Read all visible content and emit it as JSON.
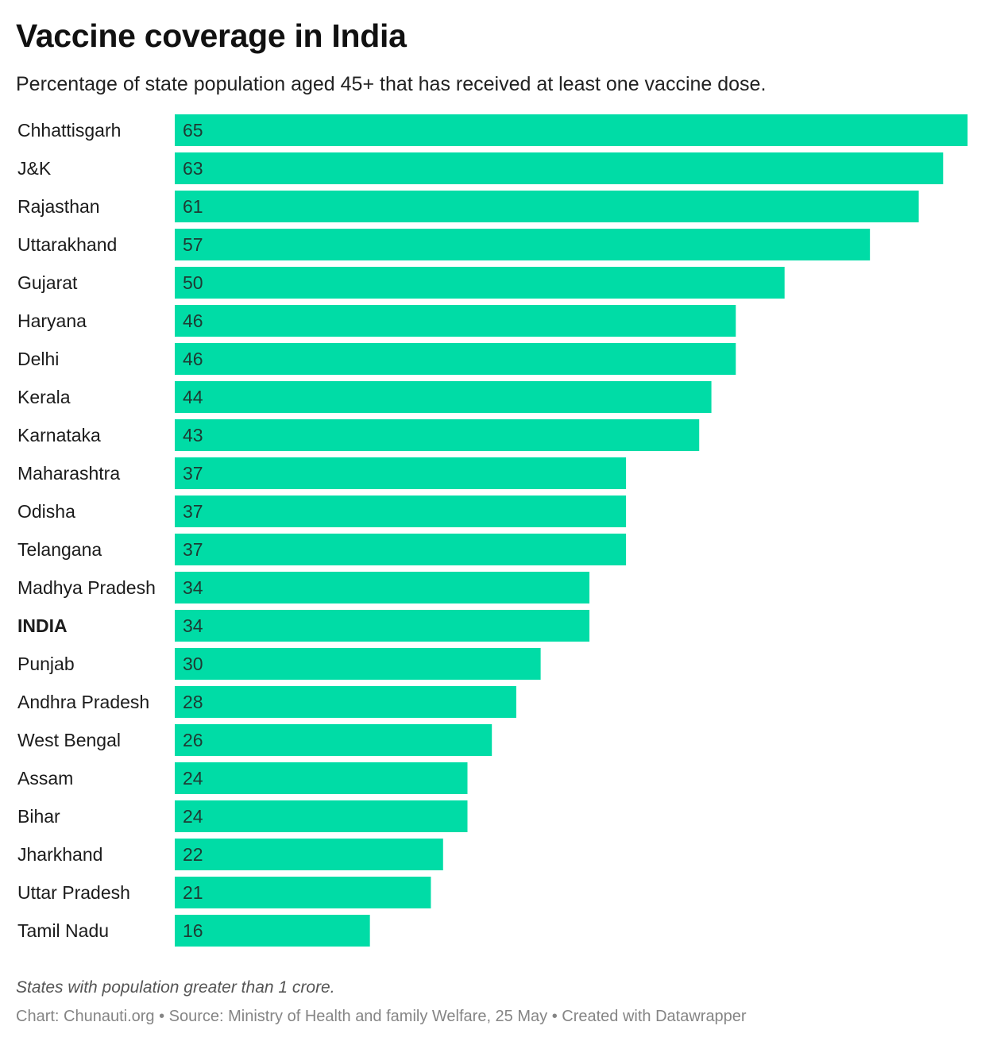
{
  "header": {
    "title": "Vaccine coverage in India",
    "subtitle": "Percentage of state population aged 45+ that has received at least one vaccine dose."
  },
  "chart_data": {
    "type": "bar",
    "orientation": "horizontal",
    "title": "Vaccine coverage in India",
    "subtitle": "Percentage of state population aged 45+ that has received at least one vaccine dose.",
    "xlabel": "",
    "ylabel": "",
    "xlim": [
      0,
      65
    ],
    "grid": false,
    "bar_color": "#00dca6",
    "categories": [
      "Chhattisgarh",
      "J&K",
      "Rajasthan",
      "Uttarakhand",
      "Gujarat",
      "Haryana",
      "Delhi",
      "Kerala",
      "Karnataka",
      "Maharashtra",
      "Odisha",
      "Telangana",
      "Madhya Pradesh",
      "INDIA",
      "Punjab",
      "Andhra Pradesh",
      "West Bengal",
      "Assam",
      "Bihar",
      "Jharkhand",
      "Uttar Pradesh",
      "Tamil Nadu"
    ],
    "values": [
      65,
      63,
      61,
      57,
      50,
      46,
      46,
      44,
      43,
      37,
      37,
      37,
      34,
      34,
      30,
      28,
      26,
      24,
      24,
      22,
      21,
      16
    ],
    "highlight": [
      "INDIA"
    ]
  },
  "footer": {
    "note": "States with population greater than 1 crore.",
    "credit": "Chart: Chunauti.org • Source: Ministry of Health and family Welfare, 25 May • Created with Datawrapper"
  }
}
